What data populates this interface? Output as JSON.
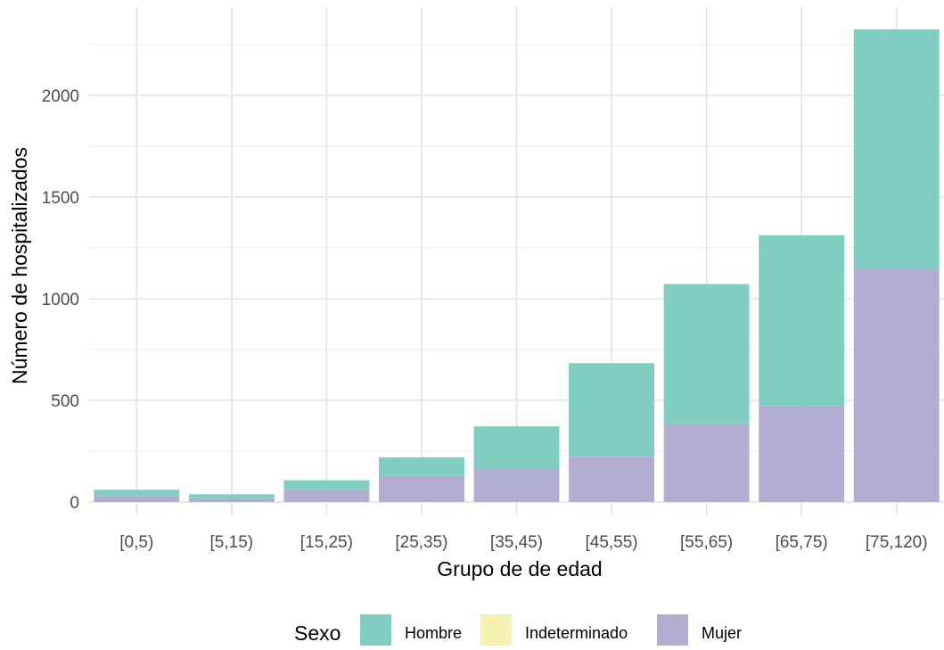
{
  "chart_data": {
    "type": "bar",
    "stacked": true,
    "categories": [
      "[0,5)",
      "[5,15)",
      "[15,25)",
      "[25,35)",
      "[35,45)",
      "[45,55)",
      "[55,65)",
      "[65,75)",
      "[75,120)"
    ],
    "series": [
      {
        "name": "Hombre",
        "color": "#80cdc1",
        "values": [
          30,
          20,
          45,
          90,
          210,
          460,
          690,
          840,
          1180
        ]
      },
      {
        "name": "Indeterminado",
        "color": "#f5f1b0",
        "values": [
          0,
          0,
          0,
          0,
          0,
          0,
          0,
          0,
          0
        ]
      },
      {
        "name": "Mujer",
        "color": "#b2aed2",
        "values": [
          30,
          18,
          62,
          130,
          162,
          223,
          382,
          472,
          1145
        ]
      }
    ],
    "stack_order_bottom_to_top": [
      "Mujer",
      "Indeterminado",
      "Hombre"
    ],
    "xlabel": "Grupo de de edad",
    "ylabel": "Número de hospitalizados",
    "ylim": [
      0,
      2400
    ],
    "yticks": [
      0,
      500,
      1000,
      1500,
      2000
    ],
    "grid": true,
    "legend": {
      "title": "Sexo",
      "position": "bottom"
    }
  }
}
